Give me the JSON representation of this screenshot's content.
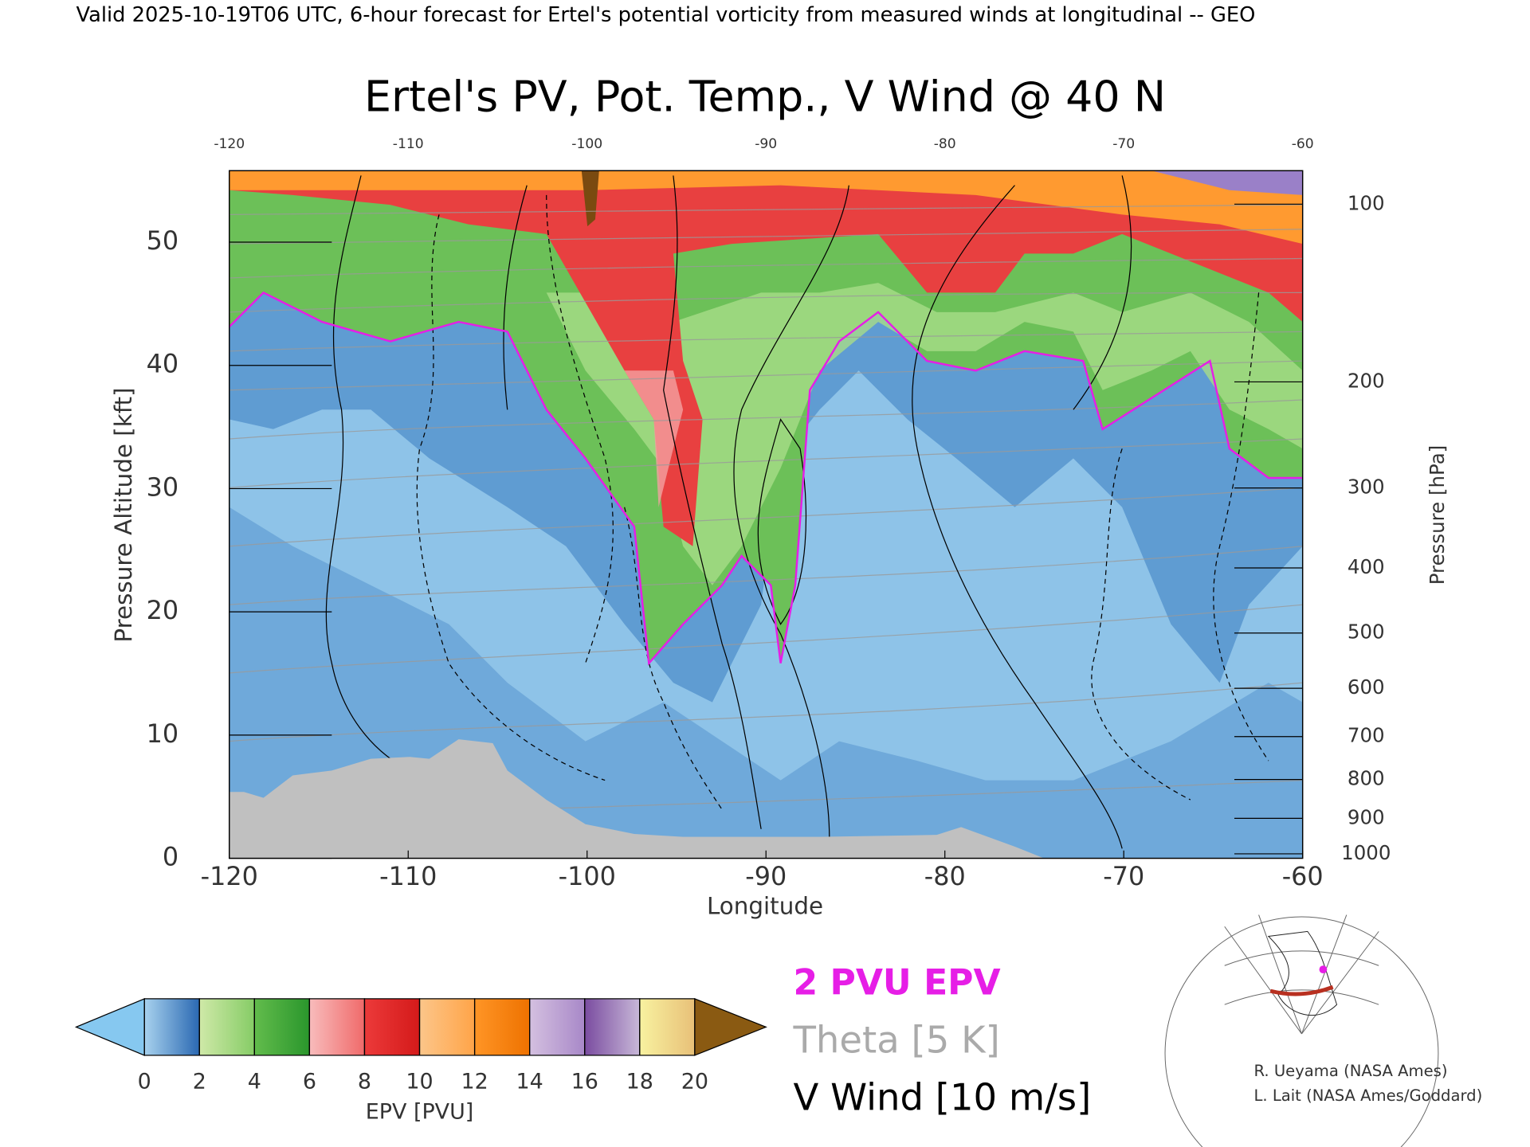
{
  "header": "Valid 2025-10-19T06 UTC, 6-hour forecast for Ertel's potential vorticity from measured winds at longitudinal -- GEO",
  "chart_data": {
    "type": "contour",
    "title": "Ertel's PV, Pot. Temp., V Wind @ 40 N",
    "xlabel": "Longitude",
    "ylabel": "Pressure Altitude [kft]",
    "y2label": "Pressure [hPa]",
    "xlim": [
      -120,
      -60
    ],
    "xticks": [
      -120,
      -110,
      -100,
      -90,
      -80,
      -70,
      -60
    ],
    "ylim": [
      0,
      55.8
    ],
    "yticks": [
      0,
      10,
      20,
      30,
      40,
      50
    ],
    "y2ticks": [
      1000,
      900,
      800,
      700,
      600,
      500,
      400,
      300,
      200,
      100
    ],
    "colorbar": {
      "ticks": [
        0,
        2,
        4,
        6,
        8,
        10,
        12,
        14,
        16,
        18,
        20
      ],
      "label": "EPV [PVU]",
      "colors": [
        [
          "#a8d2ee",
          "#2a68b2"
        ],
        [
          "#cfe9a8",
          "#86cc66"
        ],
        [
          "#62bc4c",
          "#2a962c"
        ],
        [
          "#f8bcbc",
          "#f06a6a"
        ],
        [
          "#ec3a3a",
          "#d41a1a"
        ],
        [
          "#fcc68a",
          "#ffa448"
        ],
        [
          "#ff9526",
          "#ee7200"
        ],
        [
          "#d4c0e0",
          "#a888c8"
        ],
        [
          "#7a4ca0",
          "#c8b8d8"
        ],
        [
          "#f8f2a0",
          "#e8c078"
        ]
      ],
      "under": "#86c8f0",
      "over": "#8a5a12"
    },
    "legend": [
      {
        "name": "2 PVU EPV",
        "color": "#e61ee6"
      },
      {
        "name": "Theta [5 K]",
        "color": "#aaaaaa"
      },
      {
        "name": "V Wind [10 m/s]",
        "color": "#000000"
      }
    ]
  },
  "credits": [
    "R. Ueyama (NASA Ames)",
    "L. Lait (NASA Ames/Goddard)"
  ]
}
